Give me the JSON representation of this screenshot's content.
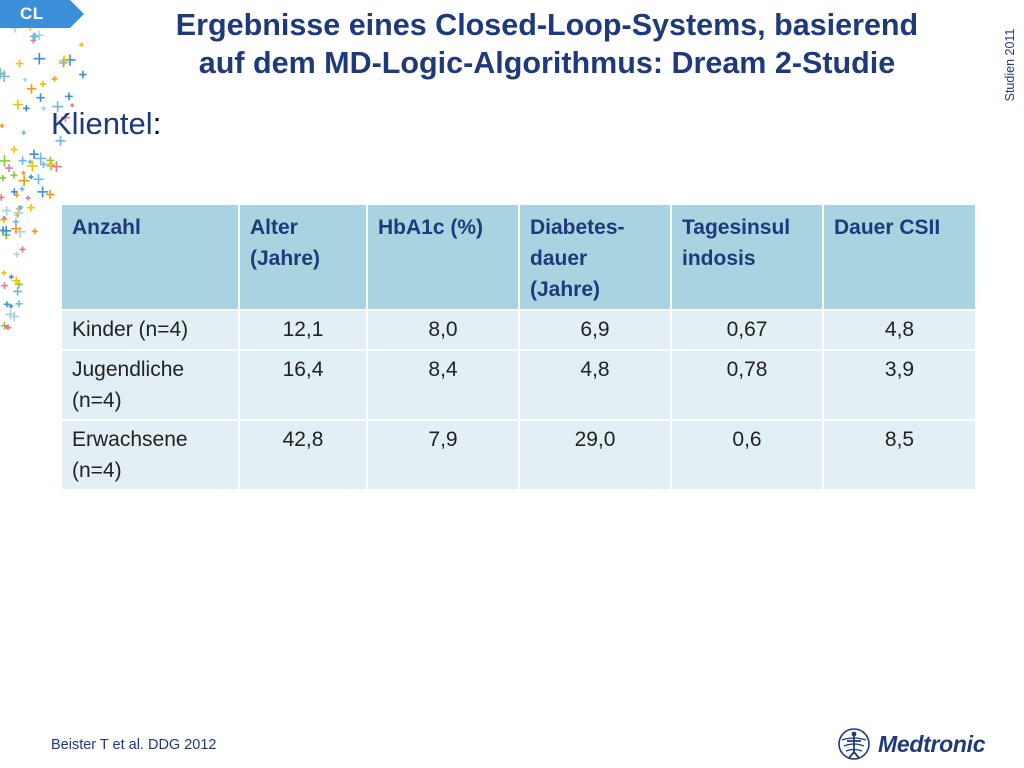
{
  "badge": {
    "label": "CL"
  },
  "header": {
    "title_line1": "Ergebnisse eines Closed-Loop-Systems, basierend",
    "title_line2": "auf dem MD-Logic-Algorithmus: Dream 2-Studie",
    "side_label": "Studien 2011"
  },
  "subtitle": {
    "text": "Klientel",
    "colon": ":"
  },
  "table": {
    "headers": [
      [
        "Anzahl"
      ],
      [
        "Alter",
        "(Jahre)"
      ],
      [
        "HbA1c (%)"
      ],
      [
        "Diabetes-",
        "dauer",
        "(Jahre)"
      ],
      [
        "Tagesinsul",
        "indosis"
      ],
      [
        "Dauer CSII"
      ]
    ],
    "rows": [
      {
        "label": [
          "Kinder (n=4)"
        ],
        "values": [
          "12,1",
          "8,0",
          "6,9",
          "0,67",
          "4,8"
        ]
      },
      {
        "label": [
          "Jugendliche",
          "(n=4)"
        ],
        "values": [
          "16,4",
          "8,4",
          "4,8",
          "0,78",
          "3,9"
        ]
      },
      {
        "label": [
          "Erwachsene",
          "(n=4)"
        ],
        "values": [
          "42,8",
          "7,9",
          "29,0",
          "0,6",
          "8,5"
        ]
      }
    ]
  },
  "footer": {
    "citation": "Beister T et al. DDG 2012"
  },
  "logo": {
    "text": "Medtronic",
    "icon": "medtronic-figure-icon"
  },
  "colors": {
    "navy": "#1f3a7a",
    "header_cell": "#a7d4e0",
    "body_cell": "#e2eff4",
    "badge": "#3a8fd8"
  }
}
